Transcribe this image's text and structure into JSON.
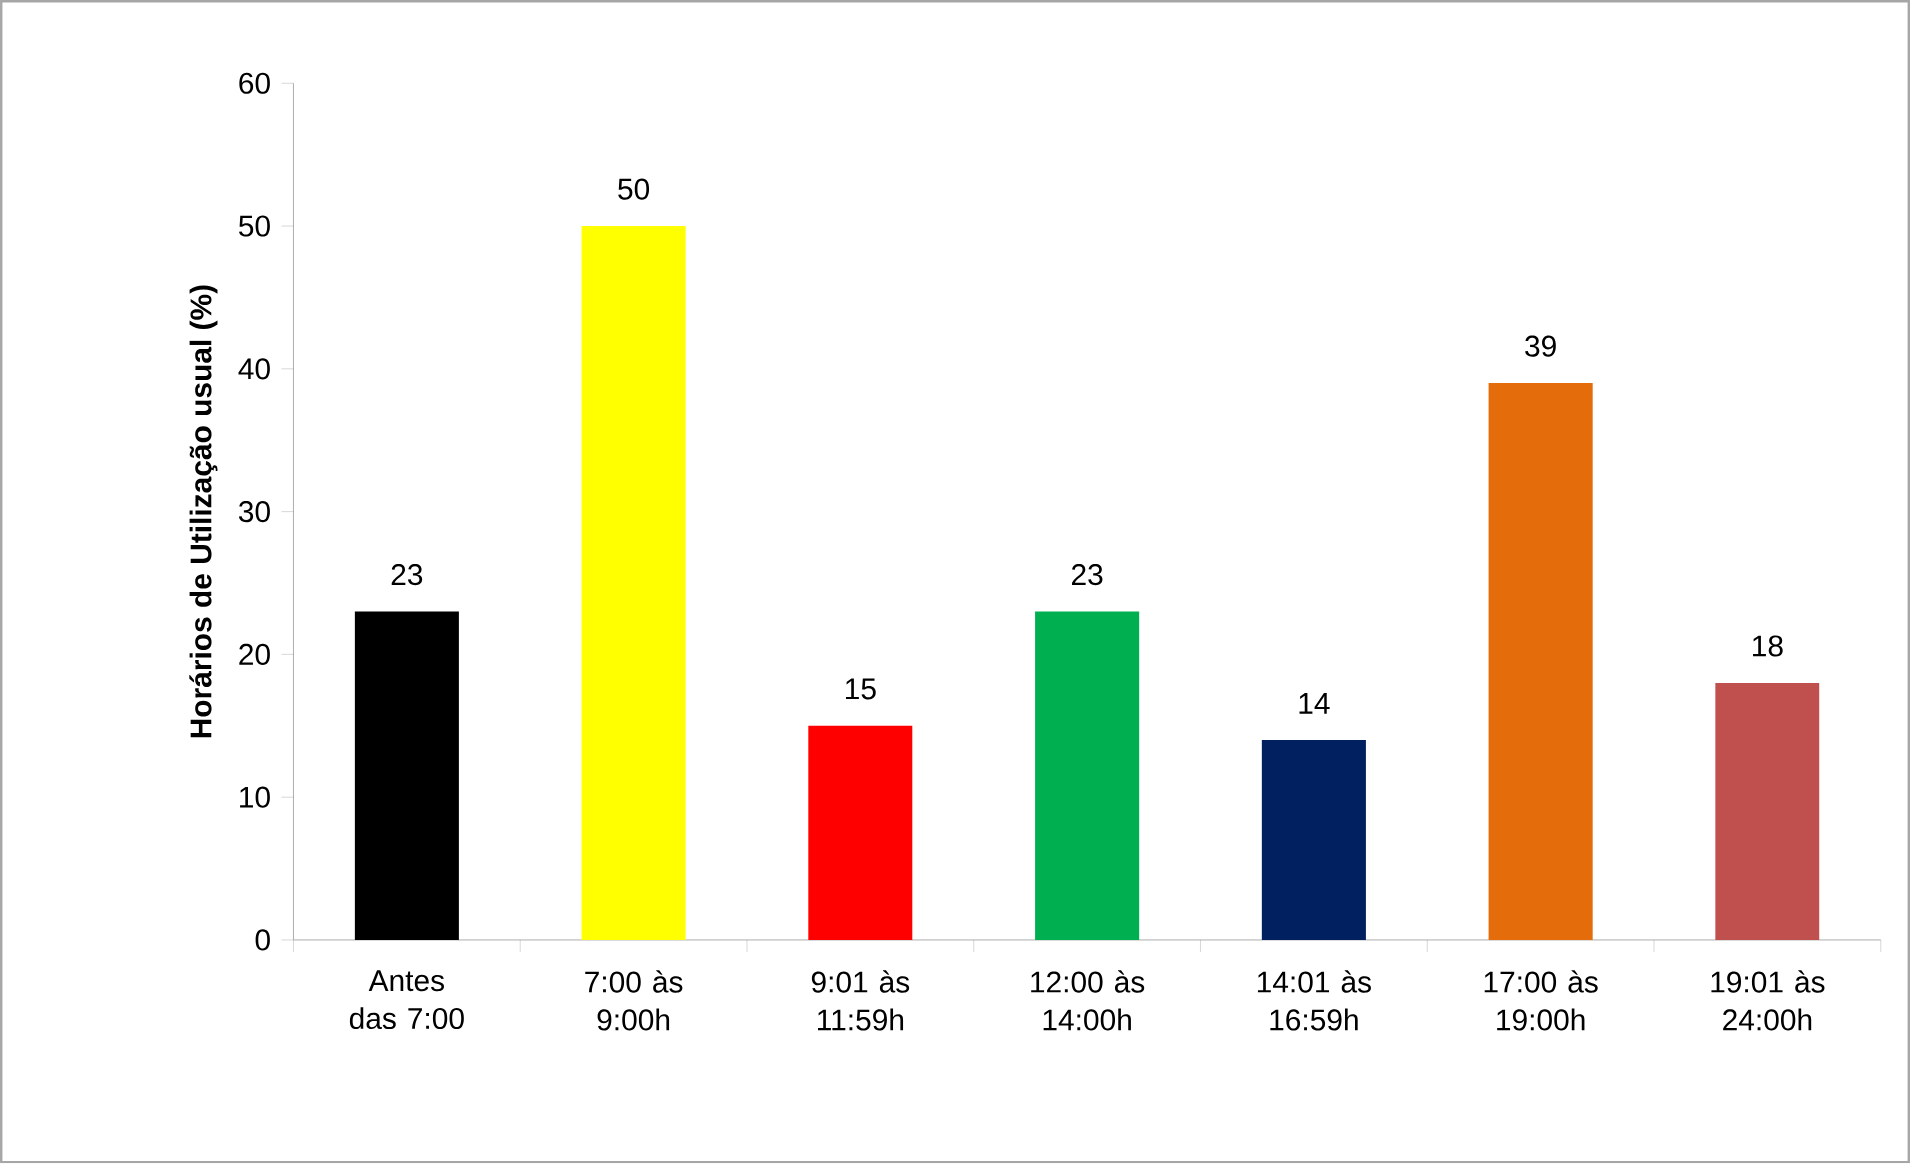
{
  "chart_data": {
    "type": "bar",
    "ylabel": "Horários de Utilização usual (%)",
    "categories": [
      "Antes das 7:00",
      "7:00 às 9:00h",
      "9:01 às 11:59h",
      "12:00 às 14:00h",
      "14:01 às 16:59h",
      "17:00 às 19:00h",
      "19:01 às 24:00h"
    ],
    "values": [
      23,
      50,
      15,
      23,
      14,
      39,
      18
    ],
    "colors": [
      "#000000",
      "#ffff00",
      "#ff0000",
      "#00b050",
      "#002060",
      "#e46c0a",
      "#c0504d"
    ],
    "ylim": [
      0,
      60
    ],
    "yticks": [
      0,
      10,
      20,
      30,
      40,
      50,
      60
    ],
    "data_labels": true,
    "grid": false
  }
}
